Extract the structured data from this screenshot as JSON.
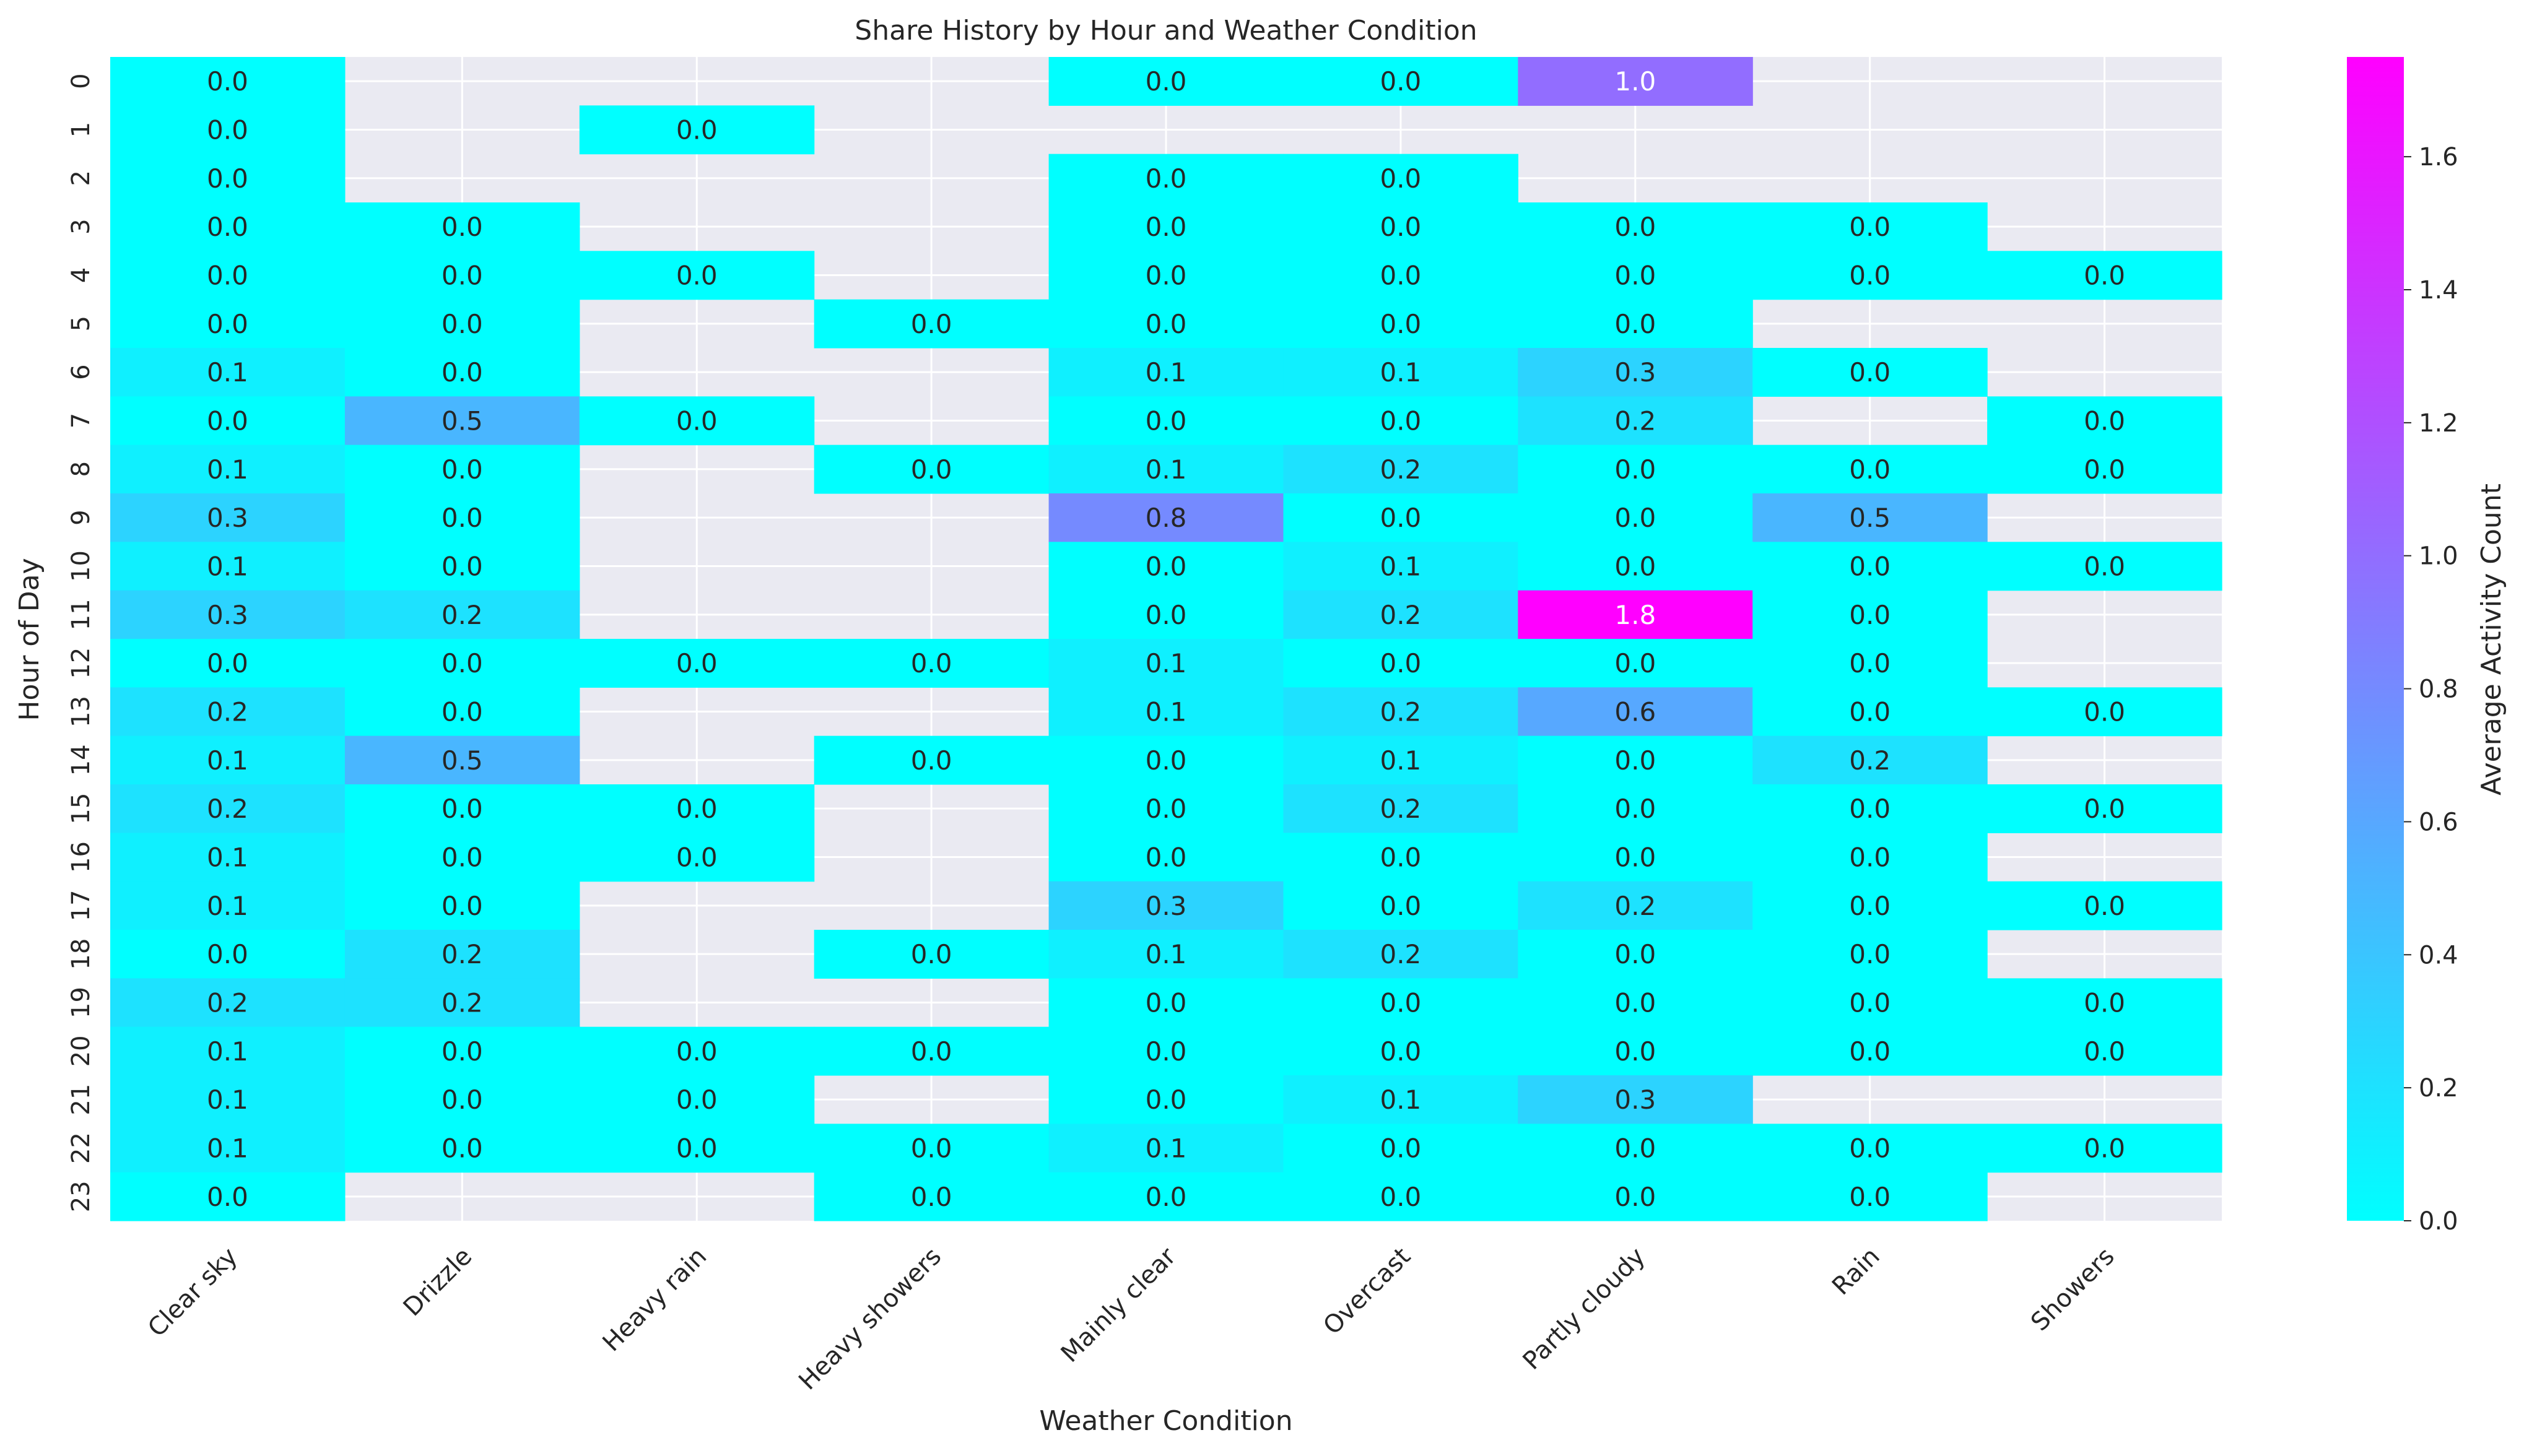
{
  "chart_data": {
    "type": "heatmap",
    "title": "Share History by Hour and Weather Condition",
    "xlabel": "Weather Condition",
    "ylabel": "Hour of Day",
    "x_categories": [
      "Clear sky",
      "Drizzle",
      "Heavy rain",
      "Heavy showers",
      "Mainly clear",
      "Overcast",
      "Partly cloudy",
      "Rain",
      "Showers"
    ],
    "y_categories": [
      "0",
      "1",
      "2",
      "3",
      "4",
      "5",
      "6",
      "7",
      "8",
      "9",
      "10",
      "11",
      "12",
      "13",
      "14",
      "15",
      "16",
      "17",
      "18",
      "19",
      "20",
      "21",
      "22",
      "23"
    ],
    "values": [
      [
        0.0,
        null,
        null,
        null,
        0.0,
        0.0,
        1.0,
        null,
        null
      ],
      [
        0.0,
        null,
        0.0,
        null,
        null,
        null,
        null,
        null,
        null
      ],
      [
        0.0,
        null,
        null,
        null,
        0.0,
        0.0,
        null,
        null,
        null
      ],
      [
        0.0,
        0.0,
        null,
        null,
        0.0,
        0.0,
        0.0,
        0.0,
        null
      ],
      [
        0.0,
        0.0,
        0.0,
        null,
        0.0,
        0.0,
        0.0,
        0.0,
        0.0
      ],
      [
        0.0,
        0.0,
        null,
        0.0,
        0.0,
        0.0,
        0.0,
        null,
        null
      ],
      [
        0.1,
        0.0,
        null,
        null,
        0.1,
        0.1,
        0.3,
        0.0,
        null
      ],
      [
        0.0,
        0.5,
        0.0,
        null,
        0.0,
        0.0,
        0.2,
        null,
        0.0
      ],
      [
        0.1,
        0.0,
        null,
        0.0,
        0.1,
        0.2,
        0.0,
        0.0,
        0.0
      ],
      [
        0.3,
        0.0,
        null,
        null,
        0.8,
        0.0,
        0.0,
        0.5,
        null
      ],
      [
        0.1,
        0.0,
        null,
        null,
        0.0,
        0.1,
        0.0,
        0.0,
        0.0
      ],
      [
        0.3,
        0.2,
        null,
        null,
        0.0,
        0.2,
        1.8,
        0.0,
        null
      ],
      [
        0.0,
        0.0,
        0.0,
        0.0,
        0.1,
        0.0,
        0.0,
        0.0,
        null
      ],
      [
        0.2,
        0.0,
        null,
        null,
        0.1,
        0.2,
        0.6,
        0.0,
        0.0
      ],
      [
        0.1,
        0.5,
        null,
        0.0,
        0.0,
        0.1,
        0.0,
        0.2,
        null
      ],
      [
        0.2,
        0.0,
        0.0,
        null,
        0.0,
        0.2,
        0.0,
        0.0,
        0.0
      ],
      [
        0.1,
        0.0,
        0.0,
        null,
        0.0,
        0.0,
        0.0,
        0.0,
        null
      ],
      [
        0.1,
        0.0,
        null,
        null,
        0.3,
        0.0,
        0.2,
        0.0,
        0.0
      ],
      [
        0.0,
        0.2,
        null,
        0.0,
        0.1,
        0.2,
        0.0,
        0.0,
        null
      ],
      [
        0.2,
        0.2,
        null,
        null,
        0.0,
        0.0,
        0.0,
        0.0,
        0.0
      ],
      [
        0.1,
        0.0,
        0.0,
        0.0,
        0.0,
        0.0,
        0.0,
        0.0,
        0.0
      ],
      [
        0.1,
        0.0,
        0.0,
        null,
        0.0,
        0.1,
        0.3,
        null,
        null
      ],
      [
        0.1,
        0.0,
        0.0,
        0.0,
        0.1,
        0.0,
        0.0,
        0.0,
        0.0
      ],
      [
        0.0,
        null,
        null,
        0.0,
        0.0,
        0.0,
        0.0,
        0.0,
        null
      ]
    ],
    "colorbar": {
      "label": "Average Activity Count",
      "range": [
        0.0,
        1.75
      ],
      "ticks": [
        "0.0",
        "0.2",
        "0.4",
        "0.6",
        "0.8",
        "1.0",
        "1.2",
        "1.4",
        "1.6"
      ],
      "colormap": "cool",
      "color_low": "#00ffff",
      "color_high": "#ff00ff"
    },
    "grid": true,
    "background_color": "#eaeaf2",
    "grid_color": "#ffffff"
  }
}
